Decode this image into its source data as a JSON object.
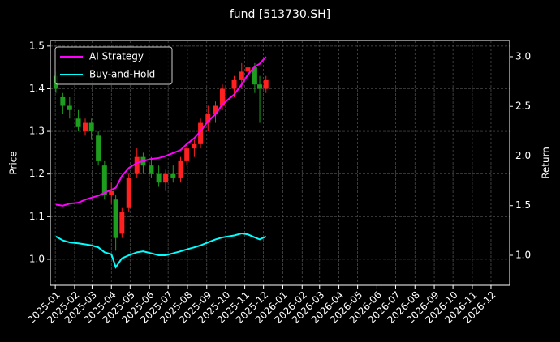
{
  "chart_data": {
    "type": "candlestick",
    "title": "fund [513730.SH]",
    "ylabel": "Price",
    "y2label": "Return",
    "x": [
      "2025-01-02",
      "2025-01-13",
      "2025-01-24",
      "2025-02-07",
      "2025-02-18",
      "2025-02-28",
      "2025-03-11",
      "2025-03-21",
      "2025-04-01",
      "2025-04-08",
      "2025-04-18",
      "2025-04-29",
      "2025-05-12",
      "2025-05-22",
      "2025-06-04",
      "2025-06-16",
      "2025-06-27",
      "2025-07-09",
      "2025-07-21",
      "2025-07-31",
      "2025-08-12",
      "2025-08-22",
      "2025-09-03",
      "2025-09-15",
      "2025-09-26",
      "2025-10-15",
      "2025-10-27",
      "2025-11-06",
      "2025-11-17",
      "2025-11-25",
      "2025-12-05"
    ],
    "open": [
      1.43,
      1.38,
      1.36,
      1.33,
      1.3,
      1.32,
      1.29,
      1.22,
      1.15,
      1.14,
      1.06,
      1.12,
      1.2,
      1.24,
      1.22,
      1.2,
      1.18,
      1.2,
      1.19,
      1.23,
      1.26,
      1.27,
      1.32,
      1.34,
      1.36,
      1.4,
      1.42,
      1.44,
      1.45,
      1.41,
      1.4
    ],
    "high": [
      1.44,
      1.39,
      1.38,
      1.35,
      1.33,
      1.33,
      1.3,
      1.23,
      1.18,
      1.15,
      1.12,
      1.2,
      1.26,
      1.25,
      1.24,
      1.22,
      1.21,
      1.22,
      1.24,
      1.27,
      1.28,
      1.33,
      1.36,
      1.37,
      1.41,
      1.43,
      1.46,
      1.49,
      1.46,
      1.43,
      1.43
    ],
    "low": [
      1.39,
      1.34,
      1.33,
      1.3,
      1.29,
      1.28,
      1.22,
      1.14,
      1.13,
      1.02,
      1.05,
      1.11,
      1.19,
      1.2,
      1.19,
      1.17,
      1.16,
      1.18,
      1.18,
      1.22,
      1.24,
      1.26,
      1.3,
      1.32,
      1.35,
      1.38,
      1.4,
      1.42,
      1.39,
      1.32,
      1.39
    ],
    "close": [
      1.4,
      1.36,
      1.35,
      1.31,
      1.32,
      1.3,
      1.23,
      1.15,
      1.16,
      1.05,
      1.11,
      1.19,
      1.24,
      1.22,
      1.2,
      1.18,
      1.2,
      1.19,
      1.23,
      1.26,
      1.27,
      1.32,
      1.34,
      1.36,
      1.4,
      1.42,
      1.44,
      1.45,
      1.41,
      1.4,
      1.42
    ],
    "up_color": "#ff2020",
    "down_color": "#1e9e1e",
    "series": [
      {
        "name": "AI Strategy",
        "color": "#ff00ff",
        "axis": "y2",
        "values": [
          1.51,
          1.5,
          1.52,
          1.53,
          1.56,
          1.58,
          1.6,
          1.63,
          1.66,
          1.68,
          1.8,
          1.88,
          1.93,
          1.95,
          1.97,
          1.98,
          2.0,
          2.03,
          2.06,
          2.12,
          2.18,
          2.25,
          2.35,
          2.42,
          2.52,
          2.62,
          2.72,
          2.82,
          2.9,
          2.93,
          3.0
        ]
      },
      {
        "name": "Buy-and-Hold",
        "color": "#00ffff",
        "axis": "y2",
        "values": [
          1.19,
          1.15,
          1.13,
          1.12,
          1.11,
          1.1,
          1.08,
          1.03,
          1.01,
          0.88,
          0.97,
          1.0,
          1.03,
          1.04,
          1.02,
          1.0,
          1.0,
          1.02,
          1.04,
          1.06,
          1.08,
          1.1,
          1.13,
          1.16,
          1.18,
          1.2,
          1.22,
          1.21,
          1.18,
          1.16,
          1.19
        ]
      }
    ],
    "xlim": [
      "2024-12-24",
      "2026-12-31"
    ],
    "xticks": [
      {
        "value": "2025-01-01",
        "label": "2025-01"
      },
      {
        "value": "2025-02-01",
        "label": "2025-02"
      },
      {
        "value": "2025-03-01",
        "label": "2025-03"
      },
      {
        "value": "2025-04-01",
        "label": "2025-04"
      },
      {
        "value": "2025-05-01",
        "label": "2025-05"
      },
      {
        "value": "2025-06-01",
        "label": "2025-06"
      },
      {
        "value": "2025-07-01",
        "label": "2025-07"
      },
      {
        "value": "2025-08-01",
        "label": "2025-08"
      },
      {
        "value": "2025-09-01",
        "label": "2025-09"
      },
      {
        "value": "2025-10-01",
        "label": "2025-10"
      },
      {
        "value": "2025-11-01",
        "label": "2025-11"
      },
      {
        "value": "2025-12-01",
        "label": "2025-12"
      },
      {
        "value": "2026-01-01",
        "label": "2026-01"
      },
      {
        "value": "2026-02-01",
        "label": "2026-02"
      },
      {
        "value": "2026-03-01",
        "label": "2026-03"
      },
      {
        "value": "2026-04-01",
        "label": "2026-04"
      },
      {
        "value": "2026-05-01",
        "label": "2026-05"
      },
      {
        "value": "2026-06-01",
        "label": "2026-06"
      },
      {
        "value": "2026-07-01",
        "label": "2026-07"
      },
      {
        "value": "2026-08-01",
        "label": "2026-08"
      },
      {
        "value": "2026-09-01",
        "label": "2026-09"
      },
      {
        "value": "2026-10-01",
        "label": "2026-10"
      },
      {
        "value": "2026-11-01",
        "label": "2026-11"
      },
      {
        "value": "2026-12-01",
        "label": "2026-12"
      }
    ],
    "ylim": [
      0.939,
      1.513
    ],
    "yticks": [
      {
        "value": 1,
        "label": "1.0"
      },
      1.1,
      1.2,
      1.3,
      1.4,
      1.5
    ],
    "y2lim": [
      0.698,
      3.163
    ],
    "y2ticks": [
      {
        "value": 1,
        "label": "1.0"
      },
      1.5,
      {
        "value": 2,
        "label": "2.0"
      },
      2.5,
      {
        "value": 3,
        "label": "3.0"
      }
    ],
    "grid": true,
    "legend": "upper left"
  }
}
